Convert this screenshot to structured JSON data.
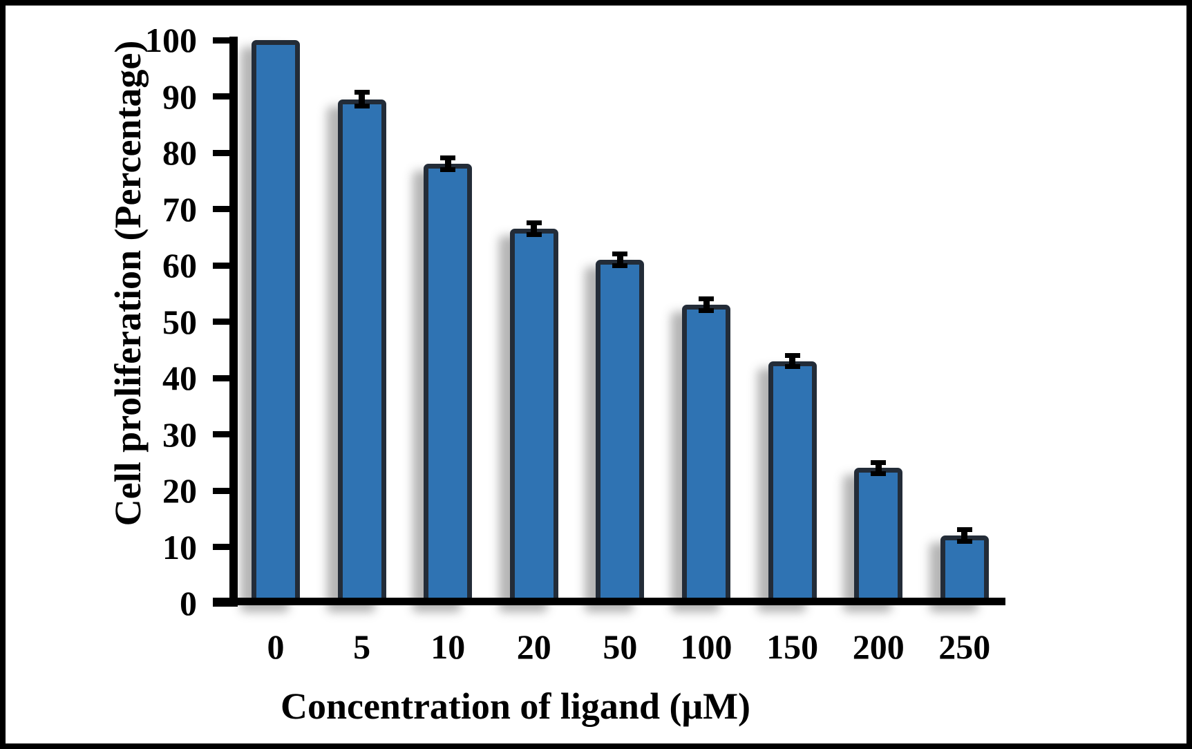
{
  "figure": {
    "frame_border_color": "#000000",
    "background_color": "#ffffff"
  },
  "chart_data": {
    "type": "bar",
    "title": "",
    "xlabel": "Concentration of ligand (μM)",
    "ylabel": "Cell proliferation (Percentage)",
    "categories": [
      "0",
      "5",
      "10",
      "20",
      "50",
      "100",
      "150",
      "200",
      "250"
    ],
    "values": [
      100,
      89.5,
      78,
      66.5,
      61,
      53,
      43,
      24,
      12
    ],
    "errors": [
      0,
      0.8,
      0.6,
      0.6,
      0.6,
      0.6,
      0.6,
      0.6,
      0.6
    ],
    "ylim": [
      0,
      100
    ],
    "yticks": [
      0,
      10,
      20,
      30,
      40,
      50,
      60,
      70,
      80,
      90,
      100
    ],
    "grid": false,
    "legend": null,
    "bar_fill_color": "#2F73B3",
    "bar_border_color": "#232C38",
    "error_bar_color": "#000000",
    "axis_color": "#000000",
    "text_color": "#000000"
  }
}
